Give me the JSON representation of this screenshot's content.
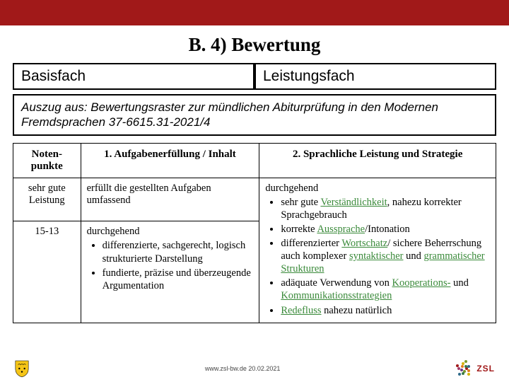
{
  "colors": {
    "brand_red": "#a11919",
    "border": "#000000",
    "green": "#3a8a3a",
    "zsl_text": "#a11919"
  },
  "title": "B. 4) Bewertung",
  "tabs": {
    "left": "Basisfach",
    "right": "Leistungsfach"
  },
  "source_text": "Auszug aus: Bewertungsraster zur mündlichen Abiturprüfung in den Modernen Fremdsprachen 37-6615.31-2021/4",
  "table": {
    "headers": [
      "Noten-\npunkte",
      "1. Aufgabenerfüllung / Inhalt",
      "2. Sprachliche Leistung und Strategie"
    ],
    "rows": [
      {
        "col0": "sehr gute Leistung",
        "col1_lead": "erfüllt die gestellten Aufgaben umfassend",
        "col1_bullets": [],
        "col2_lead": "durchgehend",
        "col2_bullets": []
      },
      {
        "col0": "15-13",
        "col1_lead": "durchgehend",
        "col1_bullets": [
          "differenzierte, sachgerecht, logisch strukturierte Darstellung",
          "fundierte, präzise und überzeugende Argumentation"
        ],
        "col2_lead": "",
        "col2_bullets": [
          {
            "pre": "sehr gute ",
            "green": "Verständlichkeit",
            "post": ", nahezu korrekter Sprachgebrauch"
          },
          {
            "pre": "korrekte ",
            "green": "Aussprache",
            "post": "/Intonation"
          },
          {
            "pre": "differenzierter ",
            "green": "Wortschatz",
            "post": "/ sichere Beherrschung auch komplexer ",
            "green2a": "syntaktischer",
            "mid2": " und ",
            "green2b": "grammatischer Strukturen"
          },
          {
            "pre": "adäquate Verwendung von ",
            "green": "Kooperations-",
            "post": " und ",
            "green2a": "Kommunikationsstrategien",
            "mid2": "",
            "green2b": ""
          },
          {
            "pre": "",
            "green": "Redefluss",
            "post": " nahezu natürlich"
          }
        ]
      }
    ]
  },
  "footer": {
    "text": "www.zsl-bw.de 20.02.2021",
    "zsl": "ZSL"
  }
}
